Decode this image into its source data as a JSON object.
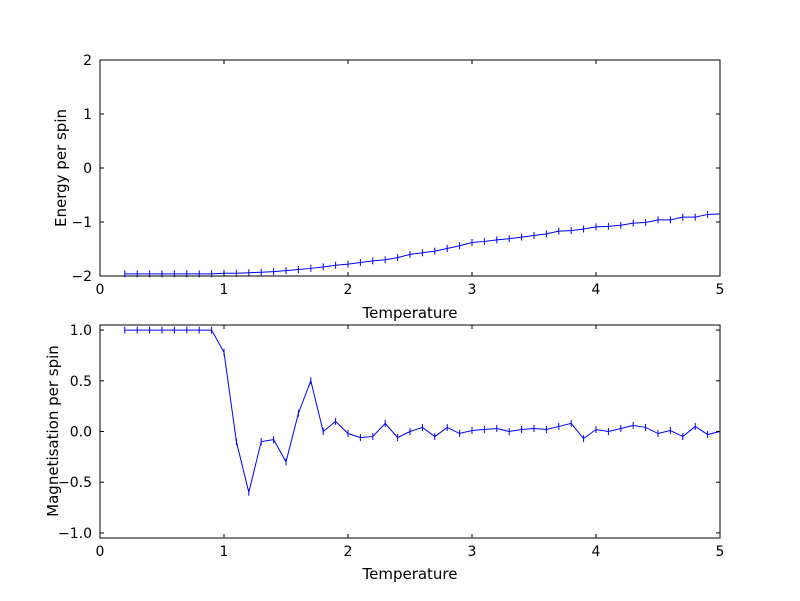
{
  "figure": {
    "background": "#ffffff",
    "line_color": "#0000ff",
    "axis_color": "#000000"
  },
  "chart_data": [
    {
      "type": "line",
      "title": "",
      "xlabel": "Temperature",
      "ylabel": "Energy per spin",
      "xlim": [
        0,
        5
      ],
      "ylim": [
        -2,
        2
      ],
      "xticks": [
        0,
        1,
        2,
        3,
        4,
        5
      ],
      "xtick_labels": [
        "0",
        "1",
        "2",
        "3",
        "4",
        "5"
      ],
      "yticks": [
        2,
        1,
        0,
        -1,
        -2
      ],
      "ytick_labels": [
        "2",
        "1",
        "0",
        "−1",
        "−2"
      ],
      "legend": "off",
      "grid": "off",
      "marker": "|",
      "line_color": "#0000ff",
      "x": [
        0.2,
        0.3,
        0.4,
        0.5,
        0.6,
        0.7,
        0.8,
        0.9,
        1.0,
        1.1,
        1.2,
        1.3,
        1.4,
        1.5,
        1.6,
        1.7,
        1.8,
        1.9,
        2.0,
        2.1,
        2.2,
        2.3,
        2.4,
        2.5,
        2.6,
        2.7,
        2.8,
        2.9,
        3.0,
        3.1,
        3.2,
        3.3,
        3.4,
        3.5,
        3.6,
        3.7,
        3.8,
        3.9,
        4.0,
        4.1,
        4.2,
        4.3,
        4.4,
        4.5,
        4.6,
        4.7,
        4.8,
        4.9,
        5.0
      ],
      "y": [
        -1.96,
        -1.96,
        -1.96,
        -1.96,
        -1.96,
        -1.96,
        -1.96,
        -1.96,
        -1.95,
        -1.95,
        -1.94,
        -1.93,
        -1.92,
        -1.9,
        -1.88,
        -1.86,
        -1.83,
        -1.8,
        -1.78,
        -1.75,
        -1.72,
        -1.7,
        -1.66,
        -1.6,
        -1.57,
        -1.54,
        -1.49,
        -1.44,
        -1.38,
        -1.36,
        -1.33,
        -1.31,
        -1.28,
        -1.25,
        -1.22,
        -1.17,
        -1.16,
        -1.13,
        -1.09,
        -1.08,
        -1.06,
        -1.02,
        -1.01,
        -0.96,
        -0.96,
        -0.91,
        -0.91,
        -0.86,
        -0.85
      ]
    },
    {
      "type": "line",
      "title": "",
      "xlabel": "Temperature",
      "ylabel": "Magnetisation per spin",
      "xlim": [
        0,
        5
      ],
      "ylim": [
        -1.05,
        1.05
      ],
      "xticks": [
        0,
        1,
        2,
        3,
        4,
        5
      ],
      "xtick_labels": [
        "0",
        "1",
        "2",
        "3",
        "4",
        "5"
      ],
      "yticks": [
        1.0,
        0.5,
        0.0,
        -0.5,
        -1.0
      ],
      "ytick_labels": [
        "1.0",
        "0.5",
        "0.0",
        "−0.5",
        "−1.0"
      ],
      "legend": "off",
      "grid": "off",
      "marker": "|",
      "line_color": "#0000ff",
      "x": [
        0.2,
        0.3,
        0.4,
        0.5,
        0.6,
        0.7,
        0.8,
        0.9,
        1.0,
        1.1,
        1.2,
        1.3,
        1.4,
        1.5,
        1.6,
        1.7,
        1.8,
        1.9,
        2.0,
        2.1,
        2.2,
        2.3,
        2.4,
        2.5,
        2.6,
        2.7,
        2.8,
        2.9,
        3.0,
        3.1,
        3.2,
        3.3,
        3.4,
        3.5,
        3.6,
        3.7,
        3.8,
        3.9,
        4.0,
        4.1,
        4.2,
        4.3,
        4.4,
        4.5,
        4.6,
        4.7,
        4.8,
        4.9,
        5.0
      ],
      "y": [
        1.0,
        1.0,
        1.0,
        1.0,
        1.0,
        1.0,
        1.0,
        1.0,
        0.78,
        -0.1,
        -0.6,
        -0.1,
        -0.08,
        -0.3,
        0.18,
        0.5,
        0.0,
        0.1,
        -0.02,
        -0.06,
        -0.05,
        0.08,
        -0.06,
        0.0,
        0.04,
        -0.05,
        0.04,
        -0.02,
        0.01,
        0.02,
        0.03,
        0.0,
        0.02,
        0.03,
        0.02,
        0.05,
        0.08,
        -0.07,
        0.02,
        0.0,
        0.03,
        0.06,
        0.04,
        -0.02,
        0.01,
        -0.05,
        0.05,
        -0.03,
        0.0
      ]
    }
  ]
}
